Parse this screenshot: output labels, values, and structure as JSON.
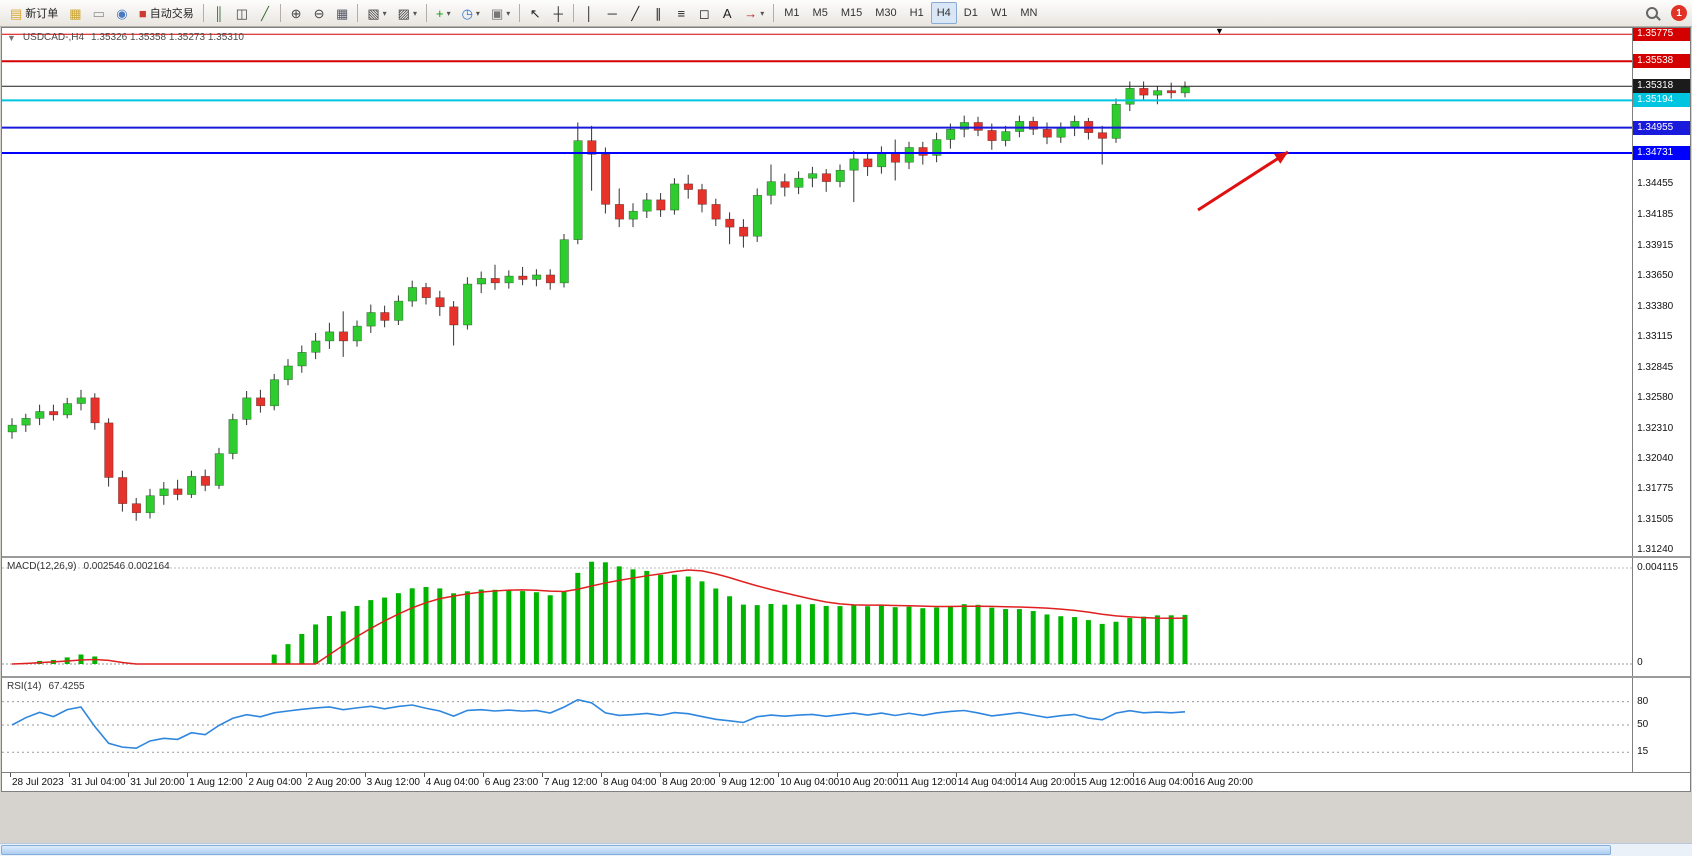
{
  "toolbar": {
    "items": [
      {
        "t": "btn",
        "name": "new-order-button",
        "icon": "new-order-icon",
        "glyph": "▤",
        "color": "#d9a62e",
        "label": "新订单"
      },
      {
        "t": "btn",
        "name": "charts-button",
        "icon": "chart-window-icon",
        "glyph": "▦",
        "color": "#caa32b"
      },
      {
        "t": "btn",
        "name": "print-button",
        "icon": "printer-icon",
        "glyph": "▭",
        "color": "#8a8a8a"
      },
      {
        "t": "btn",
        "name": "community-button",
        "icon": "globe-icon",
        "glyph": "◉",
        "color": "#4a79c4"
      },
      {
        "t": "btn",
        "name": "autotrading-button",
        "icon": "autotrading-icon",
        "glyph": "■",
        "color": "#cf3a2e",
        "label": "自动交易"
      },
      {
        "t": "sep"
      },
      {
        "t": "btn",
        "name": "bar-chart-button",
        "icon": "bar-chart-icon",
        "glyph": "║",
        "color": "#3c6e3c"
      },
      {
        "t": "btn",
        "name": "candle-chart-button",
        "icon": "candlestick-icon",
        "glyph": "◫",
        "color": "#444444"
      },
      {
        "t": "btn",
        "name": "line-chart-button",
        "icon": "line-chart-icon",
        "glyph": "╱",
        "color": "#3c6e3c"
      },
      {
        "t": "sep"
      },
      {
        "t": "btn",
        "name": "zoom-in-button",
        "icon": "zoom-in-icon",
        "glyph": "⊕",
        "color": "#444444"
      },
      {
        "t": "btn",
        "name": "zoom-out-button",
        "icon": "zoom-out-icon",
        "glyph": "⊖",
        "color": "#444444"
      },
      {
        "t": "btn",
        "name": "tile-windows-button",
        "icon": "tile-windows-icon",
        "glyph": "▦",
        "color": "#556"
      },
      {
        "t": "sep"
      },
      {
        "t": "btn",
        "name": "new-chart-button",
        "icon": "new-chart-icon",
        "glyph": "▧",
        "color": "#444444",
        "caret": true
      },
      {
        "t": "btn",
        "name": "profiles-button",
        "icon": "profiles-icon",
        "glyph": "▨",
        "color": "#444444",
        "caret": true
      },
      {
        "t": "sep"
      },
      {
        "t": "btn",
        "name": "indicators-button",
        "icon": "indicators-plus-icon",
        "glyph": "+",
        "color": "#0f9b0f",
        "caret": true
      },
      {
        "t": "btn",
        "name": "periods-button",
        "icon": "clock-icon",
        "glyph": "◷",
        "color": "#2f6fd0",
        "caret": true
      },
      {
        "t": "btn",
        "name": "templates-button",
        "icon": "template-icon",
        "glyph": "▣",
        "color": "#777777",
        "caret": true
      },
      {
        "t": "sep"
      },
      {
        "t": "btn",
        "name": "cursor-button",
        "icon": "cursor-icon",
        "glyph": "↖",
        "color": "#222222"
      },
      {
        "t": "btn",
        "name": "crosshair-button",
        "icon": "crosshair-icon",
        "glyph": "┼",
        "color": "#222222"
      },
      {
        "t": "sep"
      },
      {
        "t": "btn",
        "name": "vertical-line-button",
        "icon": "vertical-line-icon",
        "glyph": "│",
        "color": "#222222"
      },
      {
        "t": "btn",
        "name": "horizontal-line-button",
        "icon": "horizontal-line-icon",
        "glyph": "─",
        "color": "#222222"
      },
      {
        "t": "btn",
        "name": "trendline-button",
        "icon": "trendline-icon",
        "glyph": "╱",
        "color": "#222222"
      },
      {
        "t": "btn",
        "name": "channel-button",
        "icon": "channel-icon",
        "glyph": "∥",
        "color": "#222222"
      },
      {
        "t": "btn",
        "name": "fibonacci-button",
        "icon": "fibonacci-icon",
        "glyph": "≡",
        "color": "#222222"
      },
      {
        "t": "btn",
        "name": "shapes-button",
        "icon": "shapes-icon",
        "glyph": "◻",
        "color": "#222222"
      },
      {
        "t": "btn",
        "name": "text-button",
        "icon": "text-label-icon",
        "glyph": "A",
        "color": "#222222"
      },
      {
        "t": "btn",
        "name": "arrows-button",
        "icon": "arrow-objects-icon",
        "glyph": "→",
        "color": "#b22222",
        "caret": true
      },
      {
        "t": "sep"
      }
    ],
    "timeframes": [
      "M1",
      "M5",
      "M15",
      "M30",
      "H1",
      "H4",
      "D1",
      "W1",
      "MN"
    ],
    "active_timeframe": "H4",
    "notification_count": "1"
  },
  "chart": {
    "symbol_label": "USDCAD-,H4",
    "ohlc": "1.35326 1.35358 1.35273 1.35310",
    "shift_marker": "▼",
    "menu_glyph": "▼",
    "price_axis_ticks": [
      "1.34455",
      "1.34185",
      "1.33915",
      "1.33650",
      "1.33380",
      "1.33115",
      "1.32845",
      "1.32580",
      "1.32310",
      "1.32040",
      "1.31775",
      "1.31505",
      "1.31240"
    ],
    "price_lines": [
      {
        "price": 1.35775,
        "label": "1.35775",
        "color": "#d40000",
        "width": 1
      },
      {
        "price": 1.35538,
        "label": "1.35538",
        "color": "#d40000",
        "width": 2
      },
      {
        "price": 1.35318,
        "label": "1.35318",
        "color": "#1b1b1b",
        "width": 1
      },
      {
        "price": 1.35194,
        "label": "1.35194",
        "color": "#00c5e0",
        "width": 2
      },
      {
        "price": 1.34955,
        "label": "1.34955",
        "color": "#1a1adc",
        "width": 2
      },
      {
        "price": 1.34731,
        "label": "1.34731",
        "color": "#0000ff",
        "width": 2
      }
    ],
    "time_axis": [
      "28 Jul 2023",
      "31 Jul 04:00",
      "31 Jul 20:00",
      "1 Aug 12:00",
      "2 Aug 04:00",
      "2 Aug 20:00",
      "3 Aug 12:00",
      "4 Aug 04:00",
      "6 Aug 23:00",
      "7 Aug 12:00",
      "8 Aug 04:00",
      "8 Aug 20:00",
      "9 Aug 12:00",
      "10 Aug 04:00",
      "10 Aug 20:00",
      "11 Aug 12:00",
      "14 Aug 04:00",
      "14 Aug 20:00",
      "15 Aug 12:00",
      "16 Aug 04:00",
      "16 Aug 20:00"
    ]
  },
  "macd": {
    "label": "MACD(12,26,9)",
    "values_label": "0.002546 0.002164",
    "axis_max": "0.004115",
    "axis_min": "0",
    "histogram_color": "#00b400",
    "signal_color": "#e02020"
  },
  "rsi": {
    "label": "RSI(14)",
    "value_label": "67.4255",
    "line_color": "#2e86de",
    "levels": [
      {
        "value": 80,
        "label": "80"
      },
      {
        "value": 50,
        "label": "50"
      },
      {
        "value": 15,
        "label": "15"
      }
    ]
  },
  "annotation_arrow": {
    "color": "#e01010"
  },
  "chart_data": {
    "type": "candlestick",
    "symbol": "USDCAD",
    "timeframe": "H4",
    "title": "USDCAD-,H4 1.35326 1.35358 1.35273 1.35310",
    "price_range": {
      "top": 1.3583,
      "bottom": 1.3119
    },
    "up_color": "#2ecc2e",
    "down_color": "#e5322a",
    "wick_color": "#333333",
    "candles": [
      [
        1.3228,
        1.324,
        1.3222,
        1.3234
      ],
      [
        1.3234,
        1.3244,
        1.3228,
        1.324
      ],
      [
        1.324,
        1.3252,
        1.3234,
        1.3246
      ],
      [
        1.3246,
        1.3252,
        1.3238,
        1.3243
      ],
      [
        1.3243,
        1.3258,
        1.324,
        1.3253
      ],
      [
        1.3253,
        1.3265,
        1.3247,
        1.3258
      ],
      [
        1.3258,
        1.3262,
        1.323,
        1.3236
      ],
      [
        1.3236,
        1.324,
        1.318,
        1.3188
      ],
      [
        1.3188,
        1.3194,
        1.3158,
        1.3165
      ],
      [
        1.3165,
        1.317,
        1.315,
        1.3157
      ],
      [
        1.3157,
        1.3178,
        1.3152,
        1.3172
      ],
      [
        1.3172,
        1.3184,
        1.3164,
        1.3178
      ],
      [
        1.3178,
        1.3186,
        1.3168,
        1.3173
      ],
      [
        1.3173,
        1.3194,
        1.317,
        1.3189
      ],
      [
        1.3189,
        1.3195,
        1.3176,
        1.3181
      ],
      [
        1.3181,
        1.3214,
        1.3178,
        1.3209
      ],
      [
        1.3209,
        1.3244,
        1.3204,
        1.3239
      ],
      [
        1.3239,
        1.3264,
        1.3234,
        1.3258
      ],
      [
        1.3258,
        1.3265,
        1.3245,
        1.3251
      ],
      [
        1.3251,
        1.3279,
        1.3247,
        1.3274
      ],
      [
        1.3274,
        1.3292,
        1.3269,
        1.3286
      ],
      [
        1.3286,
        1.3304,
        1.328,
        1.3298
      ],
      [
        1.3298,
        1.3315,
        1.3292,
        1.3308
      ],
      [
        1.3308,
        1.3324,
        1.3301,
        1.3316
      ],
      [
        1.3316,
        1.3334,
        1.3294,
        1.3308
      ],
      [
        1.3308,
        1.3326,
        1.3303,
        1.3321
      ],
      [
        1.3321,
        1.334,
        1.3315,
        1.3333
      ],
      [
        1.3333,
        1.3339,
        1.332,
        1.3326
      ],
      [
        1.3326,
        1.3348,
        1.3322,
        1.3343
      ],
      [
        1.3343,
        1.3361,
        1.3338,
        1.3355
      ],
      [
        1.3355,
        1.3359,
        1.334,
        1.3346
      ],
      [
        1.3346,
        1.3352,
        1.333,
        1.3338
      ],
      [
        1.3338,
        1.3343,
        1.3304,
        1.3322
      ],
      [
        1.3322,
        1.3364,
        1.3318,
        1.3358
      ],
      [
        1.3358,
        1.3369,
        1.335,
        1.3363
      ],
      [
        1.3363,
        1.3375,
        1.3353,
        1.3359
      ],
      [
        1.3359,
        1.337,
        1.3354,
        1.3365
      ],
      [
        1.3365,
        1.3373,
        1.3357,
        1.3362
      ],
      [
        1.3362,
        1.3371,
        1.3356,
        1.3366
      ],
      [
        1.3366,
        1.3371,
        1.3353,
        1.3359
      ],
      [
        1.3359,
        1.3402,
        1.3355,
        1.3397
      ],
      [
        1.3397,
        1.35,
        1.3393,
        1.3484
      ],
      [
        1.3484,
        1.3497,
        1.344,
        1.3472
      ],
      [
        1.3472,
        1.3478,
        1.342,
        1.3428
      ],
      [
        1.3428,
        1.3442,
        1.3408,
        1.3415
      ],
      [
        1.3415,
        1.3429,
        1.3408,
        1.3422
      ],
      [
        1.3422,
        1.3438,
        1.3416,
        1.3432
      ],
      [
        1.3432,
        1.3438,
        1.3417,
        1.3423
      ],
      [
        1.3423,
        1.3451,
        1.3419,
        1.3446
      ],
      [
        1.3446,
        1.3454,
        1.3433,
        1.3441
      ],
      [
        1.3441,
        1.3446,
        1.3421,
        1.3428
      ],
      [
        1.3428,
        1.3433,
        1.3409,
        1.3415
      ],
      [
        1.3415,
        1.3421,
        1.3393,
        1.3408
      ],
      [
        1.3408,
        1.3415,
        1.339,
        1.34
      ],
      [
        1.34,
        1.3442,
        1.3395,
        1.3436
      ],
      [
        1.3436,
        1.3463,
        1.3428,
        1.3448
      ],
      [
        1.3448,
        1.3455,
        1.3435,
        1.3443
      ],
      [
        1.3443,
        1.3457,
        1.3437,
        1.3451
      ],
      [
        1.3451,
        1.3461,
        1.3443,
        1.3455
      ],
      [
        1.3455,
        1.3459,
        1.3439,
        1.3448
      ],
      [
        1.3448,
        1.3463,
        1.3443,
        1.3458
      ],
      [
        1.3458,
        1.3475,
        1.343,
        1.3468
      ],
      [
        1.3468,
        1.3473,
        1.3453,
        1.3461
      ],
      [
        1.3461,
        1.3479,
        1.3455,
        1.3473
      ],
      [
        1.3473,
        1.3485,
        1.3449,
        1.3465
      ],
      [
        1.3465,
        1.3483,
        1.3459,
        1.3478
      ],
      [
        1.3478,
        1.3483,
        1.3463,
        1.3471
      ],
      [
        1.3471,
        1.3491,
        1.3465,
        1.3485
      ],
      [
        1.3485,
        1.3499,
        1.3477,
        1.3494
      ],
      [
        1.3494,
        1.3506,
        1.3487,
        1.35
      ],
      [
        1.35,
        1.3505,
        1.3488,
        1.3493
      ],
      [
        1.3493,
        1.3499,
        1.3476,
        1.3484
      ],
      [
        1.3484,
        1.3497,
        1.3479,
        1.3492
      ],
      [
        1.3492,
        1.3506,
        1.3487,
        1.3501
      ],
      [
        1.3501,
        1.3505,
        1.3489,
        1.3494
      ],
      [
        1.3494,
        1.35,
        1.3481,
        1.3487
      ],
      [
        1.3487,
        1.35,
        1.3482,
        1.3495
      ],
      [
        1.3495,
        1.3506,
        1.3488,
        1.3501
      ],
      [
        1.3501,
        1.3504,
        1.3485,
        1.3491
      ],
      [
        1.3491,
        1.3497,
        1.3463,
        1.3486
      ],
      [
        1.3486,
        1.3521,
        1.3482,
        1.3516
      ],
      [
        1.3516,
        1.3536,
        1.351,
        1.353
      ],
      [
        1.353,
        1.3536,
        1.3519,
        1.3524
      ],
      [
        1.3524,
        1.3532,
        1.3516,
        1.3528
      ],
      [
        1.3528,
        1.3535,
        1.3521,
        1.3526
      ],
      [
        1.3526,
        1.3536,
        1.3522,
        1.3531
      ]
    ],
    "indicators": [
      {
        "name": "MACD",
        "params": [
          12,
          26,
          9
        ],
        "current": [
          0.002546,
          0.002164
        ],
        "axis_range": [
          0,
          0.004115
        ]
      },
      {
        "name": "RSI",
        "params": [
          14
        ],
        "current": 67.4255,
        "levels": [
          80,
          50,
          15
        ]
      }
    ],
    "horizontal_levels": [
      1.35775,
      1.35538,
      1.35318,
      1.35194,
      1.34955,
      1.34731
    ]
  }
}
